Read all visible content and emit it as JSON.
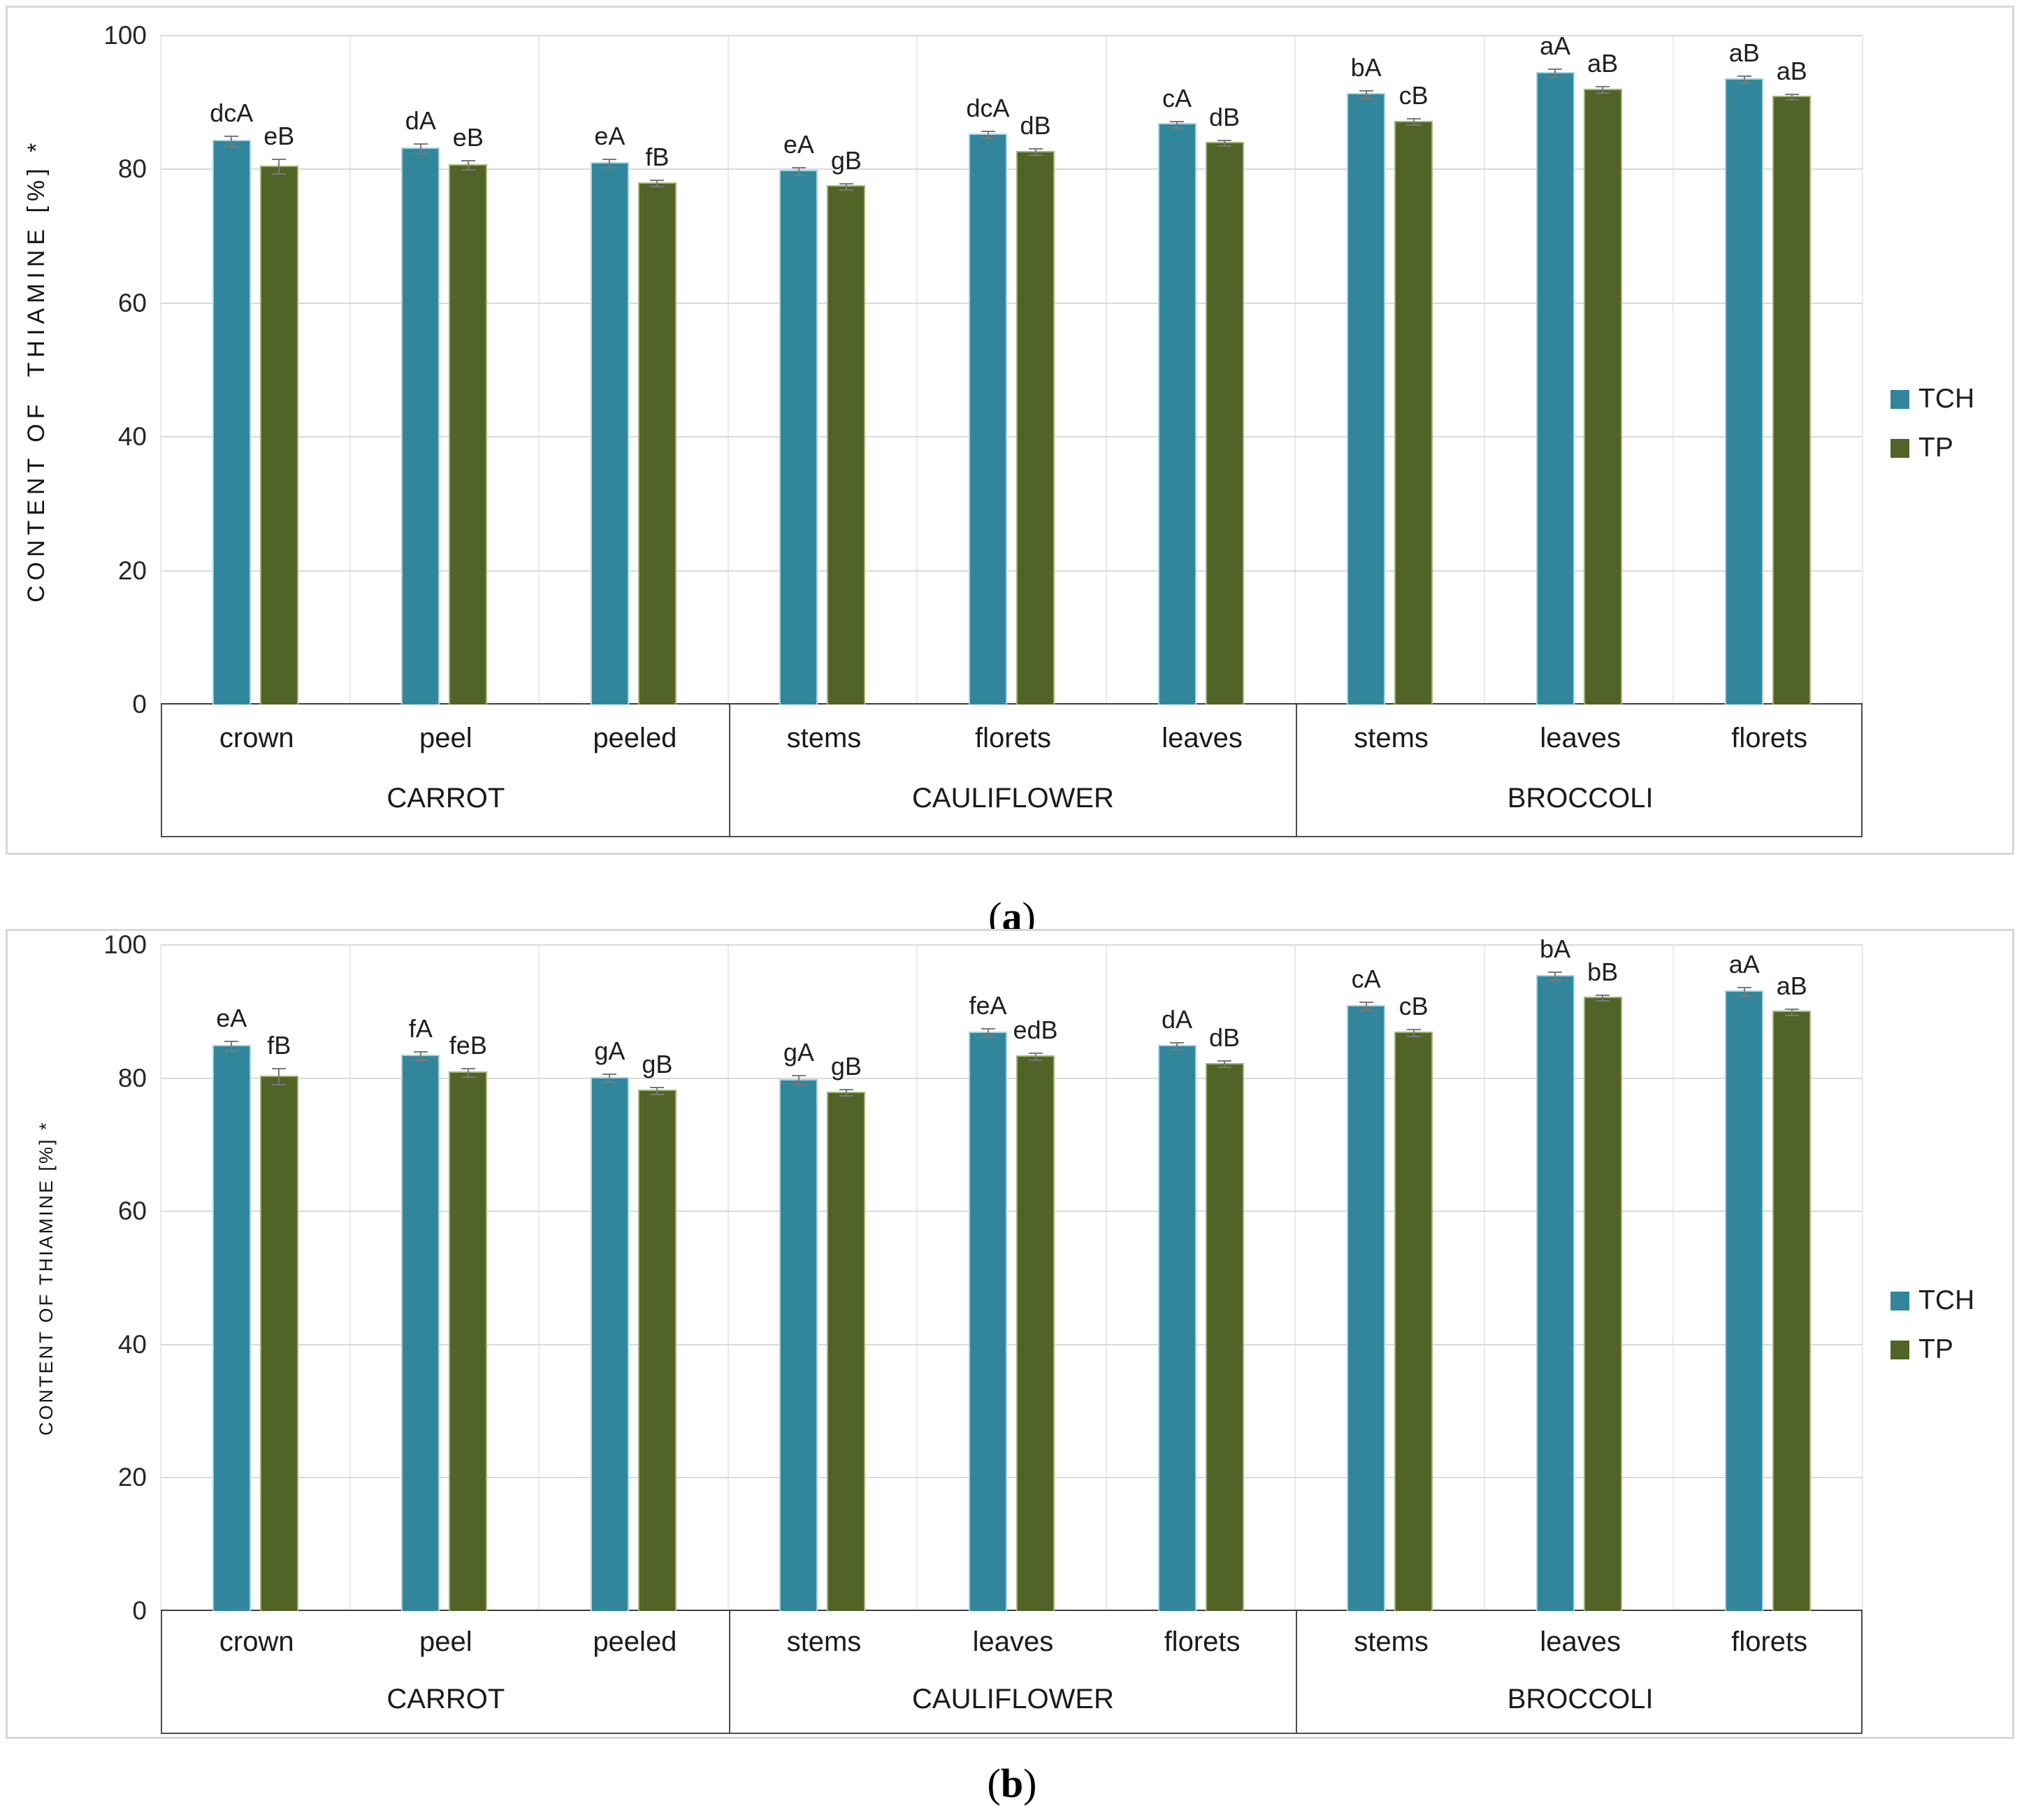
{
  "figure": {
    "caption_open": "(",
    "caption_close": ")"
  },
  "legend_colors": {
    "TCH": "#31869B",
    "TP": "#516326"
  },
  "chart_data": [
    {
      "type": "bar",
      "panel_letter": "a",
      "ylabel": "CONTENT OF  THIAMINE [%] *",
      "xlabel": "",
      "ylim": [
        0,
        100
      ],
      "yticks": [
        0,
        20,
        40,
        60,
        80,
        100
      ],
      "grid": true,
      "legend_position": "right-middle",
      "groups": [
        {
          "name": "CARROT",
          "parts": [
            "crown",
            "peel",
            "peeled"
          ]
        },
        {
          "name": "CAULIFLOWER",
          "parts": [
            "stems",
            "florets",
            "leaves"
          ]
        },
        {
          "name": "BROCCOLI",
          "parts": [
            "stems",
            "leaves",
            "florets"
          ]
        }
      ],
      "categories": [
        "crown",
        "peel",
        "peeled",
        "stems",
        "florets",
        "leaves",
        "stems",
        "leaves",
        "florets"
      ],
      "series": [
        {
          "name": "TCH",
          "color": "#31869B",
          "values": [
            84.4,
            83.3,
            81.1,
            79.9,
            85.4,
            86.9,
            91.4,
            94.6,
            93.6
          ],
          "errors": [
            0.7,
            0.6,
            0.5,
            0.5,
            0.4,
            0.4,
            0.5,
            0.5,
            0.4
          ],
          "labels": [
            "dcA",
            "dA",
            "eA",
            "eA",
            "dcA",
            "cA",
            "bA",
            "aA",
            "aB"
          ]
        },
        {
          "name": "TP",
          "color": "#516326",
          "values": [
            80.6,
            80.8,
            78.1,
            77.6,
            82.8,
            84.1,
            87.3,
            92.1,
            91.0
          ],
          "errors": [
            1.0,
            0.6,
            0.4,
            0.4,
            0.4,
            0.3,
            0.4,
            0.4,
            0.3
          ],
          "labels": [
            "eB",
            "eB",
            "fB",
            "gB",
            "dB",
            "dB",
            "cB",
            "aB",
            "aB"
          ]
        }
      ]
    },
    {
      "type": "bar",
      "panel_letter": "b",
      "ylabel": "CONTENT OF THIAMINE [%] *",
      "xlabel": "",
      "ylim": [
        0,
        100
      ],
      "yticks": [
        0,
        20,
        40,
        60,
        80,
        100
      ],
      "grid": true,
      "legend_position": "right-middle",
      "groups": [
        {
          "name": "CARROT",
          "parts": [
            "crown",
            "peel",
            "peeled"
          ]
        },
        {
          "name": "CAULIFLOWER",
          "parts": [
            "stems",
            "leaves",
            "florets"
          ]
        },
        {
          "name": "BROCCOLI",
          "parts": [
            "stems",
            "leaves",
            "florets"
          ]
        }
      ],
      "categories": [
        "crown",
        "peel",
        "peeled",
        "stems",
        "leaves",
        "florets",
        "stems",
        "leaves",
        "florets"
      ],
      "series": [
        {
          "name": "TCH",
          "color": "#31869B",
          "values": [
            85.0,
            83.5,
            80.2,
            79.9,
            87.0,
            85.0,
            91.0,
            95.5,
            93.2
          ],
          "errors": [
            0.6,
            0.5,
            0.5,
            0.6,
            0.5,
            0.4,
            0.5,
            0.5,
            0.5
          ],
          "labels": [
            "eA",
            "fA",
            "gA",
            "gA",
            "feA",
            "dA",
            "cA",
            "bA",
            "aA"
          ]
        },
        {
          "name": "TP",
          "color": "#516326",
          "values": [
            80.4,
            81.0,
            78.3,
            78.0,
            83.4,
            82.3,
            87.0,
            92.2,
            90.1
          ],
          "errors": [
            1.1,
            0.5,
            0.4,
            0.4,
            0.4,
            0.4,
            0.4,
            0.3,
            0.4
          ],
          "labels": [
            "fB",
            "feB",
            "gB",
            "gB",
            "edB",
            "dB",
            "cB",
            "bB",
            "aB"
          ]
        }
      ]
    }
  ]
}
